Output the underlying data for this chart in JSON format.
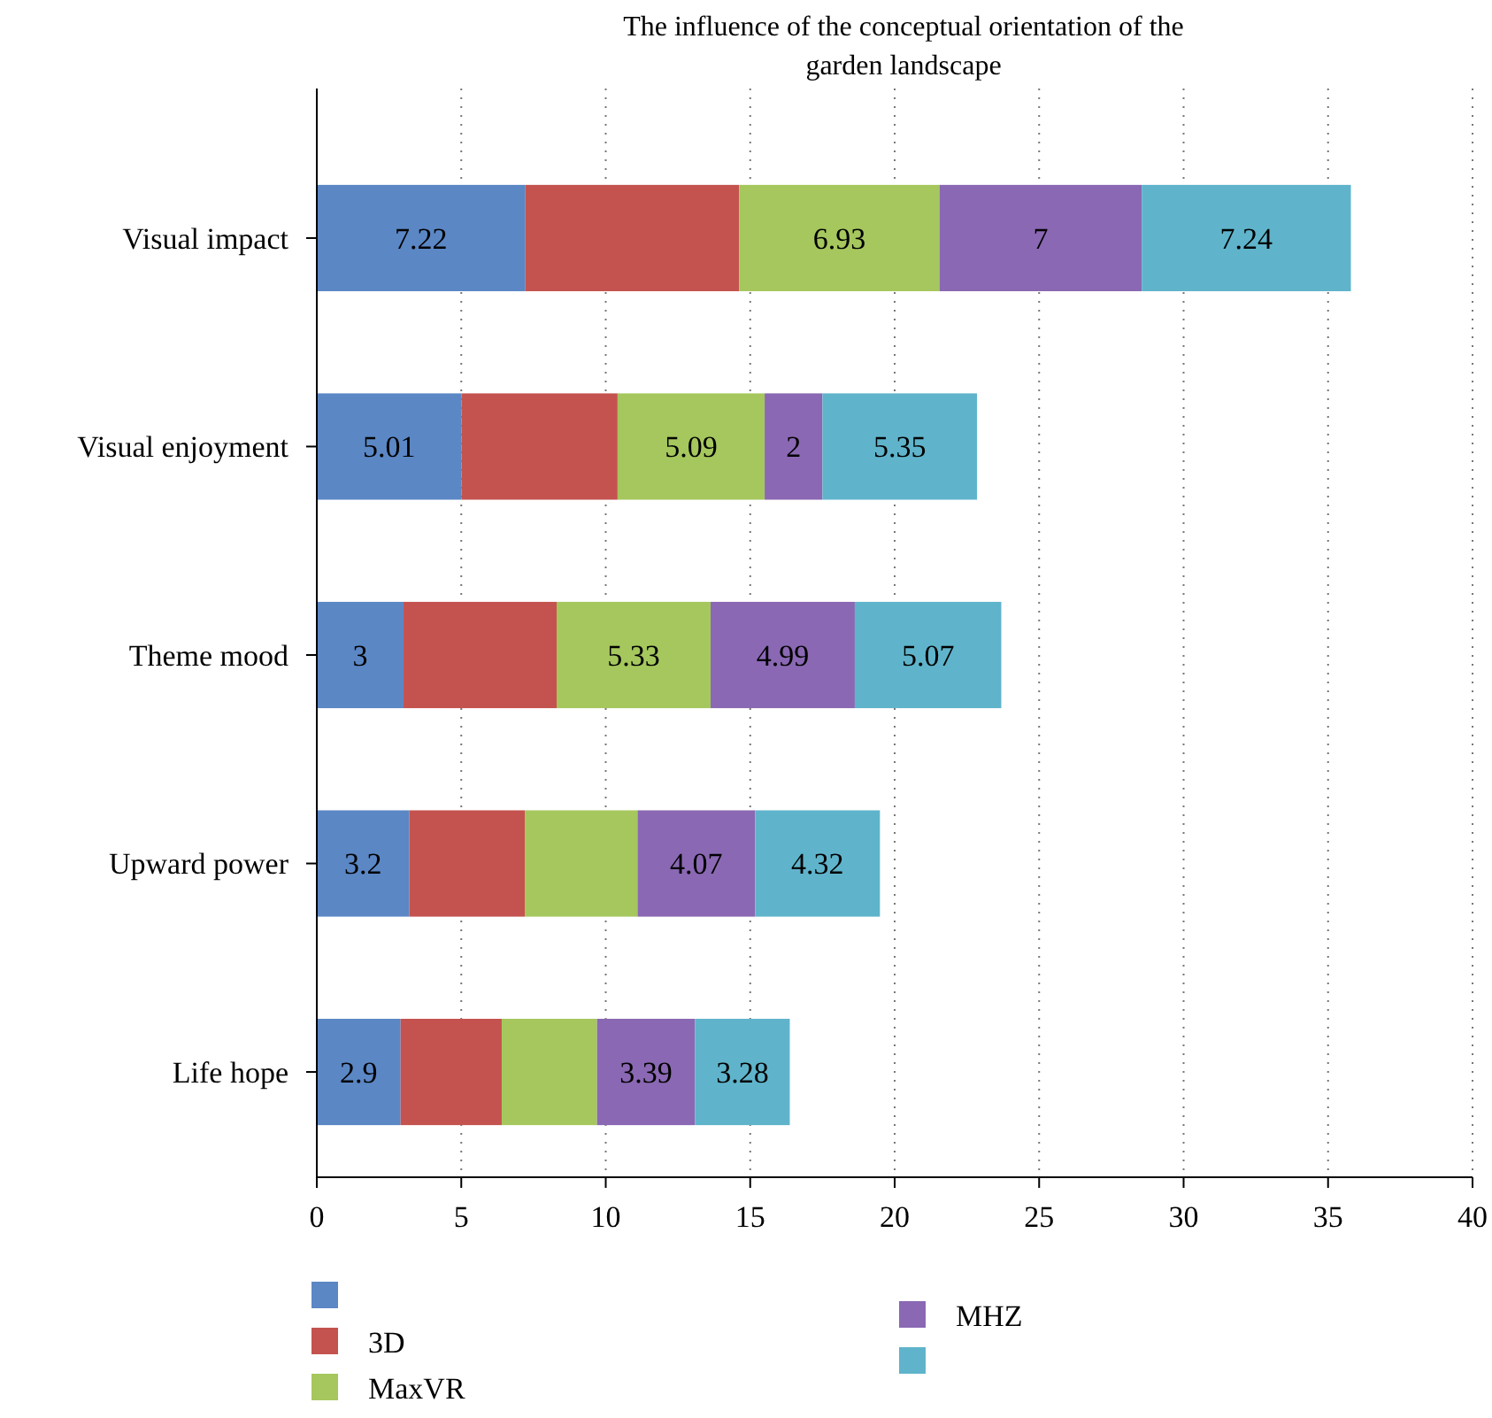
{
  "chart_data": {
    "type": "bar",
    "orientation": "horizontal",
    "stacked": true,
    "title": "The influence of the conceptual orientation of the garden landscape",
    "categories": [
      "Visual impact",
      "Visual enjoyment",
      "Theme mood",
      "Upward power",
      "Life hope"
    ],
    "series": [
      {
        "color": "#5b87c5",
        "values": [
          7.22,
          5.01,
          3,
          3.2,
          2.9
        ],
        "value_labels": [
          "7.22",
          "5.01",
          "3",
          "3.2",
          "2.9"
        ]
      },
      {
        "name": "3D",
        "color": "#c4534f",
        "values": [
          7.4,
          5.4,
          5.3,
          4.0,
          3.5
        ]
      },
      {
        "name": "MaxVR",
        "color": "#a5c75d",
        "values": [
          6.93,
          5.09,
          5.33,
          3.9,
          3.3
        ],
        "value_labels": [
          "6.93",
          "5.09",
          "5.33",
          null,
          null
        ]
      },
      {
        "name": "MHZ",
        "color": "#8a68b3",
        "values": [
          7,
          2,
          4.99,
          4.07,
          3.39
        ],
        "value_labels": [
          "7",
          "2",
          "4.99",
          "4.07",
          "3.39"
        ]
      },
      {
        "color": "#5fb4cb",
        "values": [
          7.24,
          5.35,
          5.07,
          4.32,
          3.28
        ],
        "value_labels": [
          "7.24",
          "5.35",
          "5.07",
          "4.32",
          "3.28"
        ]
      }
    ],
    "xlim": [
      0,
      40
    ],
    "xticks": [
      0,
      5,
      10,
      15,
      20,
      25,
      30,
      35,
      40
    ],
    "grid": "x",
    "legend": "bottom"
  }
}
